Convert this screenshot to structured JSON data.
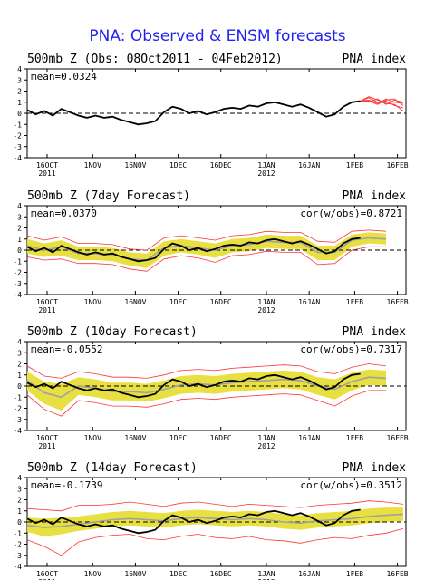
{
  "title": "PNA: Observed & ENSM forecasts",
  "colors": {
    "observed": "#000000",
    "spread": "#e8e040",
    "members": "#ff3333",
    "ensmean": "#a0a0a0",
    "title": "#2222ee"
  },
  "x_ticks": [
    {
      "day": 7,
      "label": "16OCT",
      "sub": "2011"
    },
    {
      "day": 23,
      "label": "1NOV",
      "sub": ""
    },
    {
      "day": 38,
      "label": "16NOV",
      "sub": ""
    },
    {
      "day": 53,
      "label": "1DEC",
      "sub": ""
    },
    {
      "day": 68,
      "label": "16DEC",
      "sub": ""
    },
    {
      "day": 84,
      "label": "1JAN",
      "sub": "2012"
    },
    {
      "day": 99,
      "label": "16JAN",
      "sub": ""
    },
    {
      "day": 115,
      "label": "1FEB",
      "sub": ""
    },
    {
      "day": 130,
      "label": "16FEB",
      "sub": ""
    }
  ],
  "chart_data": [
    {
      "type": "line",
      "title": "500mb Z (Obs: 08Oct2011 - 04Feb2012)",
      "right_label": "PNA index",
      "mean_label": "mean=0.0324",
      "cor_label": "",
      "ylim": [
        -4,
        4
      ],
      "xlim": [
        0,
        133
      ],
      "yticks": [
        -4,
        -3,
        -2,
        -1,
        0,
        1,
        2,
        3,
        4
      ],
      "observed": {
        "x": [
          0,
          3,
          6,
          9,
          12,
          15,
          18,
          21,
          24,
          27,
          30,
          33,
          36,
          39,
          42,
          45,
          48,
          51,
          54,
          57,
          60,
          63,
          66,
          69,
          72,
          75,
          78,
          81,
          84,
          87,
          90,
          93,
          96,
          99,
          102,
          105,
          108,
          111,
          114,
          117
        ],
        "y": [
          0.3,
          -0.1,
          0.2,
          -0.2,
          0.4,
          0.1,
          -0.2,
          -0.4,
          -0.2,
          -0.4,
          -0.3,
          -0.6,
          -0.8,
          -1.0,
          -0.9,
          -0.7,
          0.1,
          0.6,
          0.4,
          0.0,
          0.2,
          -0.1,
          0.1,
          0.4,
          0.5,
          0.4,
          0.7,
          0.6,
          0.9,
          1.0,
          0.8,
          0.6,
          0.8,
          0.5,
          0.1,
          -0.3,
          -0.1,
          0.6,
          1.0,
          1.1
        ]
      },
      "members": [
        {
          "x": [
            117,
            120,
            123,
            126,
            129,
            132
          ],
          "y": [
            1.1,
            1.2,
            0.9,
            1.3,
            1.0,
            0.9
          ]
        },
        {
          "x": [
            117,
            120,
            123,
            126,
            129,
            132
          ],
          "y": [
            1.1,
            1.4,
            1.0,
            1.1,
            0.7,
            0.5
          ]
        },
        {
          "x": [
            117,
            120,
            123,
            126,
            129,
            132
          ],
          "y": [
            1.1,
            1.0,
            1.3,
            0.8,
            1.2,
            1.0
          ]
        },
        {
          "x": [
            117,
            120,
            123,
            126,
            129,
            132
          ],
          "y": [
            1.1,
            1.5,
            1.2,
            0.9,
            0.8,
            0.2
          ]
        },
        {
          "x": [
            117,
            120,
            123,
            126,
            129,
            132
          ],
          "y": [
            1.1,
            1.1,
            0.8,
            1.2,
            1.3,
            0.7
          ]
        }
      ]
    },
    {
      "type": "line",
      "title": "500mb Z (7day Forecast)",
      "right_label": "PNA index",
      "mean_label": "mean=0.0370",
      "cor_label": "cor(w/obs)=0.8721",
      "ylim": [
        -4,
        4
      ],
      "xlim": [
        0,
        133
      ],
      "yticks": [
        -4,
        -3,
        -2,
        -1,
        0,
        1,
        2,
        3,
        4
      ],
      "observed": {
        "x": [
          0,
          3,
          6,
          9,
          12,
          15,
          18,
          21,
          24,
          27,
          30,
          33,
          36,
          39,
          42,
          45,
          48,
          51,
          54,
          57,
          60,
          63,
          66,
          69,
          72,
          75,
          78,
          81,
          84,
          87,
          90,
          93,
          96,
          99,
          102,
          105,
          108,
          111,
          114,
          117
        ],
        "y": [
          0.3,
          -0.1,
          0.2,
          -0.2,
          0.4,
          0.1,
          -0.2,
          -0.4,
          -0.2,
          -0.4,
          -0.3,
          -0.6,
          -0.8,
          -1.0,
          -0.9,
          -0.7,
          0.1,
          0.6,
          0.4,
          0.0,
          0.2,
          -0.1,
          0.1,
          0.4,
          0.5,
          0.4,
          0.7,
          0.6,
          0.9,
          1.0,
          0.8,
          0.6,
          0.8,
          0.5,
          0.1,
          -0.3,
          -0.1,
          0.6,
          1.0,
          1.1
        ]
      },
      "ensmean": {
        "x": [
          0,
          6,
          12,
          18,
          24,
          30,
          36,
          42,
          48,
          54,
          60,
          66,
          72,
          78,
          84,
          90,
          96,
          102,
          108,
          114,
          120,
          126
        ],
        "y": [
          0.4,
          0.0,
          0.3,
          -0.3,
          -0.3,
          -0.4,
          -0.8,
          -0.9,
          0.2,
          0.4,
          0.2,
          0.0,
          0.4,
          0.5,
          0.8,
          0.7,
          0.7,
          -0.2,
          -0.2,
          0.9,
          1.1,
          1.0
        ]
      },
      "spread_lo": [
        -0.3,
        -0.6,
        -0.5,
        -0.9,
        -0.9,
        -1.0,
        -1.4,
        -1.6,
        -0.5,
        -0.2,
        -0.4,
        -0.7,
        -0.2,
        -0.1,
        0.2,
        0.1,
        0.1,
        -0.9,
        -0.9,
        0.3,
        0.6,
        0.5
      ],
      "spread_hi": [
        1.0,
        0.6,
        0.9,
        0.3,
        0.3,
        0.2,
        -0.2,
        -0.3,
        0.8,
        1.0,
        0.8,
        0.6,
        1.0,
        1.1,
        1.4,
        1.3,
        1.3,
        0.4,
        0.4,
        1.4,
        1.6,
        1.5
      ],
      "outer_lo": [
        -0.6,
        -0.9,
        -0.8,
        -1.2,
        -1.2,
        -1.3,
        -1.7,
        -1.9,
        -0.8,
        -0.5,
        -0.7,
        -1.1,
        -0.5,
        -0.4,
        -0.1,
        -0.2,
        -0.2,
        -1.3,
        -1.2,
        0.0,
        0.3,
        0.3
      ],
      "outer_hi": [
        1.3,
        0.9,
        1.2,
        0.6,
        0.6,
        0.5,
        0.1,
        0.0,
        1.1,
        1.3,
        1.1,
        0.9,
        1.3,
        1.4,
        1.7,
        1.6,
        1.6,
        0.8,
        0.7,
        1.7,
        1.8,
        1.7
      ]
    },
    {
      "type": "line",
      "title": "500mb Z (10day Forecast)",
      "right_label": "PNA index",
      "mean_label": "mean=-0.0552",
      "cor_label": "cor(w/obs)=0.7317",
      "ylim": [
        -4,
        4
      ],
      "xlim": [
        0,
        133
      ],
      "yticks": [
        -4,
        -3,
        -2,
        -1,
        0,
        1,
        2,
        3,
        4
      ],
      "observed": {
        "x": [
          0,
          3,
          6,
          9,
          12,
          15,
          18,
          21,
          24,
          27,
          30,
          33,
          36,
          39,
          42,
          45,
          48,
          51,
          54,
          57,
          60,
          63,
          66,
          69,
          72,
          75,
          78,
          81,
          84,
          87,
          90,
          93,
          96,
          99,
          102,
          105,
          108,
          111,
          114,
          117
        ],
        "y": [
          0.3,
          -0.1,
          0.2,
          -0.2,
          0.4,
          0.1,
          -0.2,
          -0.4,
          -0.2,
          -0.4,
          -0.3,
          -0.6,
          -0.8,
          -1.0,
          -0.9,
          -0.7,
          0.1,
          0.6,
          0.4,
          0.0,
          0.2,
          -0.1,
          0.1,
          0.4,
          0.5,
          0.4,
          0.7,
          0.6,
          0.9,
          1.0,
          0.8,
          0.6,
          0.8,
          0.5,
          0.1,
          -0.3,
          -0.1,
          0.6,
          1.0,
          1.1
        ]
      },
      "ensmean": {
        "x": [
          0,
          6,
          12,
          18,
          24,
          30,
          36,
          42,
          48,
          54,
          60,
          66,
          72,
          78,
          84,
          90,
          96,
          102,
          108,
          114,
          120,
          126
        ],
        "y": [
          0.5,
          -0.6,
          -1.0,
          0.0,
          -0.2,
          -0.5,
          -0.5,
          -0.6,
          -0.3,
          0.1,
          0.2,
          0.1,
          0.3,
          0.4,
          0.5,
          0.6,
          0.5,
          0.0,
          -0.3,
          0.4,
          0.8,
          0.7
        ]
      },
      "spread_lo": [
        -0.4,
        -1.6,
        -2.2,
        -0.8,
        -1.0,
        -1.3,
        -1.3,
        -1.4,
        -1.1,
        -0.7,
        -0.6,
        -0.7,
        -0.5,
        -0.4,
        -0.3,
        -0.2,
        -0.3,
        -0.8,
        -1.2,
        -0.4,
        0.1,
        0.0
      ],
      "spread_hi": [
        1.3,
        0.4,
        0.2,
        0.8,
        0.6,
        0.3,
        0.3,
        0.2,
        0.5,
        0.9,
        1.0,
        0.9,
        1.1,
        1.2,
        1.3,
        1.4,
        1.3,
        0.8,
        0.6,
        1.2,
        1.5,
        1.4
      ],
      "outer_lo": [
        -0.8,
        -2.1,
        -2.7,
        -1.3,
        -1.5,
        -1.8,
        -1.8,
        -1.9,
        -1.6,
        -1.2,
        -1.1,
        -1.2,
        -1.0,
        -0.9,
        -0.8,
        -0.7,
        -0.8,
        -1.3,
        -1.8,
        -0.9,
        -0.4,
        -0.4
      ],
      "outer_hi": [
        1.8,
        0.9,
        0.7,
        1.3,
        1.1,
        0.8,
        0.8,
        0.7,
        1.0,
        1.4,
        1.5,
        1.4,
        1.6,
        1.7,
        1.8,
        1.9,
        1.8,
        1.3,
        1.1,
        1.7,
        2.0,
        1.8
      ]
    },
    {
      "type": "line",
      "title": "500mb Z (14day Forecast)",
      "right_label": "PNA index",
      "mean_label": "mean=-0.1739",
      "cor_label": "cor(w/obs)=0.3512",
      "ylim": [
        -4,
        4
      ],
      "xlim": [
        0,
        133
      ],
      "yticks": [
        -4,
        -3,
        -2,
        -1,
        0,
        1,
        2,
        3,
        4
      ],
      "observed": {
        "x": [
          0,
          3,
          6,
          9,
          12,
          15,
          18,
          21,
          24,
          27,
          30,
          33,
          36,
          39,
          42,
          45,
          48,
          51,
          54,
          57,
          60,
          63,
          66,
          69,
          72,
          75,
          78,
          81,
          84,
          87,
          90,
          93,
          96,
          99,
          102,
          105,
          108,
          111,
          114,
          117
        ],
        "y": [
          0.3,
          -0.1,
          0.2,
          -0.2,
          0.4,
          0.1,
          -0.2,
          -0.4,
          -0.2,
          -0.4,
          -0.3,
          -0.6,
          -0.8,
          -1.0,
          -0.9,
          -0.7,
          0.1,
          0.6,
          0.4,
          0.0,
          0.2,
          -0.1,
          0.1,
          0.4,
          0.5,
          0.4,
          0.7,
          0.6,
          0.9,
          1.0,
          0.8,
          0.6,
          0.8,
          0.5,
          0.1,
          -0.3,
          -0.1,
          0.6,
          1.0,
          1.1
        ]
      },
      "ensmean": {
        "x": [
          0,
          6,
          12,
          18,
          24,
          30,
          36,
          42,
          48,
          54,
          60,
          66,
          72,
          78,
          84,
          90,
          96,
          102,
          108,
          114,
          120,
          126,
          132
        ],
        "y": [
          -0.3,
          -0.5,
          -0.4,
          -0.2,
          0.0,
          0.2,
          0.3,
          0.2,
          0.1,
          0.3,
          0.4,
          0.3,
          0.2,
          0.3,
          0.2,
          0.0,
          -0.1,
          0.1,
          0.2,
          0.3,
          0.5,
          0.6,
          0.7
        ]
      },
      "spread_lo": [
        -0.9,
        -1.3,
        -1.1,
        -0.8,
        -0.6,
        -0.4,
        -0.3,
        -0.4,
        -0.5,
        -0.3,
        -0.2,
        -0.3,
        -0.4,
        -0.3,
        -0.4,
        -0.6,
        -0.7,
        -0.5,
        -0.4,
        -0.3,
        -0.1,
        0.0,
        0.1
      ],
      "spread_hi": [
        0.4,
        0.3,
        0.4,
        0.5,
        0.7,
        0.9,
        1.0,
        0.9,
        0.8,
        1.0,
        1.1,
        1.0,
        0.9,
        1.0,
        0.9,
        0.7,
        0.6,
        0.8,
        0.9,
        1.0,
        1.2,
        1.3,
        1.3
      ],
      "outer_lo": [
        -1.6,
        -2.2,
        -3.0,
        -1.8,
        -1.4,
        -1.2,
        -1.1,
        -1.5,
        -1.6,
        -1.3,
        -1.1,
        -1.4,
        -1.5,
        -1.3,
        -1.6,
        -1.7,
        -1.9,
        -1.6,
        -1.4,
        -1.5,
        -1.2,
        -1.0,
        -0.6
      ],
      "outer_hi": [
        1.2,
        1.1,
        1.0,
        1.5,
        1.5,
        1.6,
        1.8,
        1.6,
        1.4,
        1.7,
        1.8,
        1.6,
        1.4,
        1.6,
        1.5,
        1.4,
        1.3,
        1.5,
        1.6,
        1.7,
        1.9,
        1.8,
        1.6
      ]
    }
  ]
}
